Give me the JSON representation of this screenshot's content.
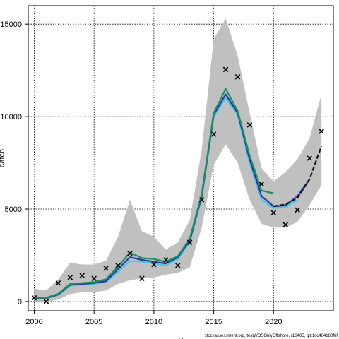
{
  "chart_data": {
    "type": "line",
    "title": "",
    "xlabel": "Y",
    "ylabel": "catch",
    "xlim": [
      1999.5,
      2025
    ],
    "ylim": [
      -500,
      16000
    ],
    "xticks": [
      2000,
      2005,
      2010,
      2015,
      2020
    ],
    "yticks": [
      0,
      5000,
      10000,
      15000
    ],
    "grid": true,
    "footnote": "stockassessment.org, testWOSOnlyOffshore, r10405, git:1cc464b80f6f",
    "band": {
      "color": "#c0c0c0",
      "x": [
        2000,
        2001,
        2002,
        2003,
        2004,
        2005,
        2006,
        2007,
        2008,
        2009,
        2010,
        2011,
        2012,
        2013,
        2014,
        2015,
        2016,
        2017,
        2018,
        2019,
        2020,
        2021,
        2022,
        2023,
        2024
      ],
      "upper": [
        700,
        600,
        1200,
        2100,
        2000,
        2000,
        2200,
        3500,
        5500,
        3800,
        3500,
        2800,
        3200,
        4400,
        8200,
        14200,
        15300,
        13300,
        10200,
        7200,
        6500,
        7000,
        7700,
        8800,
        11200
      ],
      "lower": [
        0,
        0,
        100,
        400,
        500,
        500,
        600,
        950,
        1150,
        1250,
        1300,
        1450,
        1550,
        1850,
        4000,
        7400,
        8500,
        7500,
        5500,
        4200,
        4000,
        4000,
        4300,
        5200,
        6300
      ]
    },
    "series": [
      {
        "color": "#40c8e8",
        "x": [
          2000,
          2001,
          2002,
          2003,
          2004,
          2005,
          2006,
          2007,
          2008,
          2009,
          2010,
          2011,
          2012,
          2013,
          2014,
          2015,
          2016,
          2017,
          2018,
          2019,
          2020,
          2021,
          2022
        ],
        "values": [
          160,
          160,
          360,
          850,
          920,
          960,
          1050,
          1600,
          2200,
          2150,
          2050,
          1950,
          2300,
          3200,
          5600,
          10000,
          11000,
          10100,
          7500,
          5500,
          5050,
          5100,
          5500
        ]
      },
      {
        "color": "#2838a0",
        "x": [
          2000,
          2001,
          2002,
          2003,
          2004,
          2005,
          2006,
          2007,
          2008,
          2009,
          2010,
          2011,
          2012,
          2013,
          2014,
          2015,
          2016,
          2017,
          2018,
          2019,
          2020,
          2021,
          2022,
          2023
        ],
        "values": [
          180,
          180,
          380,
          900,
          950,
          1000,
          1100,
          1750,
          2400,
          2250,
          2150,
          2050,
          2400,
          3300,
          5700,
          10100,
          11200,
          10200,
          7700,
          5700,
          5150,
          5200,
          5700,
          6600
        ]
      },
      {
        "color": "#101010",
        "dash": "6,3",
        "x": [
          2020,
          2021,
          2022,
          2023,
          2024
        ],
        "values": [
          5150,
          5250,
          5600,
          6600,
          8400
        ]
      },
      {
        "color": "#20905a",
        "x": [
          2000,
          2001,
          2002,
          2003,
          2004,
          2005,
          2006,
          2007,
          2008,
          2009,
          2010,
          2011,
          2012,
          2013,
          2014,
          2015,
          2016,
          2017,
          2018,
          2019,
          2020
        ],
        "values": [
          200,
          200,
          420,
          950,
          1000,
          1050,
          1200,
          1900,
          2650,
          2350,
          2300,
          2150,
          2450,
          3400,
          5800,
          10200,
          11500,
          10300,
          7900,
          6000,
          5850
        ]
      }
    ],
    "observations": {
      "marker": "x",
      "x": [
        2000,
        2001,
        2002,
        2003,
        2004,
        2005,
        2006,
        2007,
        2008,
        2009,
        2010,
        2011,
        2012,
        2013,
        2014,
        2015,
        2016,
        2017,
        2018,
        2019,
        2020,
        2021,
        2022,
        2023,
        2024
      ],
      "values": [
        200,
        0,
        1000,
        1300,
        1400,
        1250,
        1800,
        1950,
        2600,
        1250,
        2000,
        2250,
        1950,
        3200,
        5500,
        9050,
        12550,
        12150,
        9550,
        6350,
        4800,
        4150,
        4950,
        7750,
        9200
      ]
    }
  }
}
